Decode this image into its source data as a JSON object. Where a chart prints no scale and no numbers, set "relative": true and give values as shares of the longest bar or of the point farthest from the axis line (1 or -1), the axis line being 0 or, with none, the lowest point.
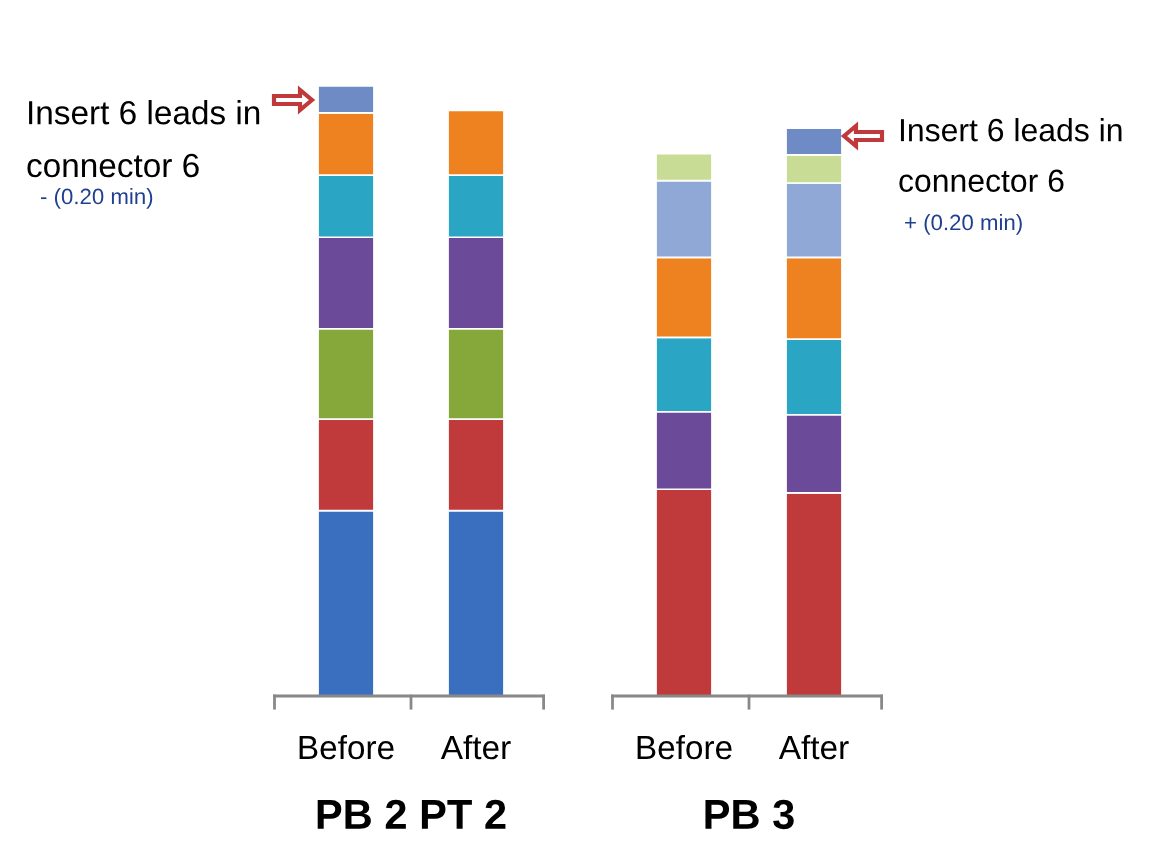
{
  "chart_data": {
    "type": "bar",
    "stacked": true,
    "relative": true,
    "categories": [
      "Before",
      "After",
      "Before",
      "After"
    ],
    "series": [
      {
        "color": "#3a6fc0",
        "values": [
          0.304,
          0.304,
          null,
          null
        ]
      },
      {
        "color": "#c0393b",
        "values": [
          0.15,
          0.15,
          0.339,
          0.333
        ]
      },
      {
        "color": "#86a83a",
        "values": [
          0.148,
          0.148,
          null,
          null
        ]
      },
      {
        "color": "#6b4a9a",
        "values": [
          0.15,
          0.15,
          0.127,
          0.128
        ]
      },
      {
        "color": "#2aa5c4",
        "values": [
          0.102,
          0.102,
          0.122,
          0.124
        ]
      },
      {
        "color": "#ee8220",
        "values": [
          0.102,
          0.106,
          0.131,
          0.134
        ]
      },
      {
        "color": "#8fa8d6",
        "values": [
          null,
          null,
          0.126,
          0.122
        ]
      },
      {
        "color": "#c9dc95",
        "values": [
          null,
          null,
          0.044,
          0.046
        ]
      },
      {
        "color": "#6f8bc6",
        "values": [
          0.044,
          null,
          null,
          0.044
        ]
      }
    ],
    "annotations": [
      "Insert 6 leads in\nconnector 6",
      "- (0.20 min)",
      "Insert 6 leads in\nconnector 6",
      "+ (0.20 min)",
      "PB 2 PT 2",
      "PB 3"
    ]
  }
}
